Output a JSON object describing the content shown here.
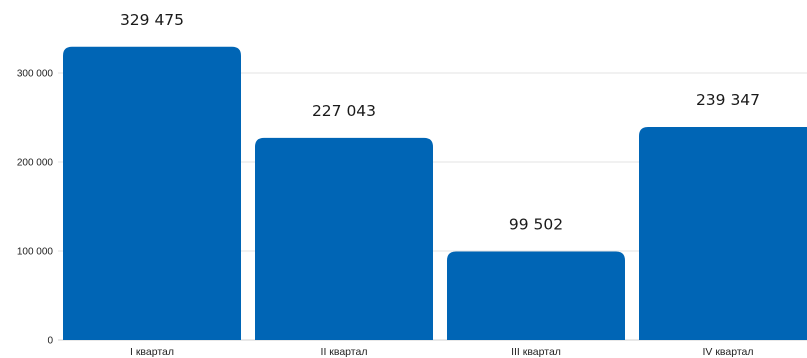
{
  "chart_data": {
    "type": "bar",
    "categories": [
      "I квартал",
      "II квартал",
      "III квартал",
      "IV квартал"
    ],
    "values": [
      329475,
      227043,
      99502,
      239347
    ],
    "value_labels": [
      "329 475",
      "227 043",
      "99 502",
      "239 347"
    ],
    "y_ticks": [
      0,
      100000,
      200000,
      300000
    ],
    "y_tick_labels": [
      "0",
      "100 000",
      "200 000",
      "300 000"
    ],
    "ylim": [
      0,
      380000
    ],
    "grid": true,
    "bar_color": "#0065B5",
    "title": "",
    "xlabel": "",
    "ylabel": ""
  }
}
